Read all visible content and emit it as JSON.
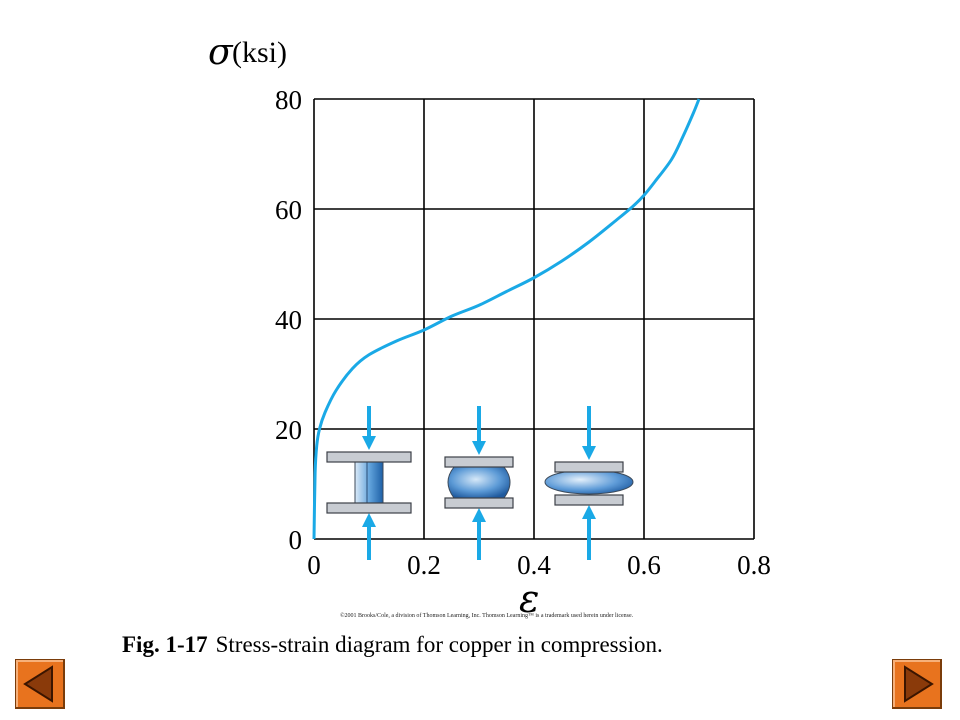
{
  "chart_data": {
    "type": "line",
    "title": "",
    "ylabel_symbol": "σ",
    "ylabel_unit": "(ksi)",
    "xlabel": "ε",
    "xlim": [
      0,
      0.8
    ],
    "ylim": [
      0,
      80
    ],
    "x_ticks": [
      "0",
      "0.2",
      "0.4",
      "0.6",
      "0.8"
    ],
    "y_ticks": [
      "0",
      "20",
      "40",
      "60",
      "80"
    ],
    "grid": true,
    "series": [
      {
        "color": "#1aa9e6",
        "x": [
          0.0,
          0.002,
          0.005,
          0.01,
          0.02,
          0.04,
          0.07,
          0.1,
          0.15,
          0.2,
          0.25,
          0.3,
          0.35,
          0.4,
          0.45,
          0.5,
          0.55,
          0.58,
          0.6,
          0.62,
          0.65,
          0.67,
          0.69,
          0.7
        ],
        "y": [
          0.0,
          12.0,
          17.0,
          20.0,
          23.0,
          27.0,
          31.0,
          33.5,
          36.0,
          38.0,
          40.5,
          42.5,
          45.0,
          47.5,
          50.5,
          54.0,
          58.0,
          60.5,
          62.5,
          65.0,
          69.0,
          73.0,
          77.5,
          80.0
        ]
      }
    ]
  },
  "specimen_icons": [
    {
      "name": "specimen-undeformed",
      "x": 0.1
    },
    {
      "name": "specimen-barrel",
      "x": 0.3
    },
    {
      "name": "specimen-flattened",
      "x": 0.5
    }
  ],
  "icon_colors": {
    "arrow": "#1aa9e6",
    "platen": "#c8ccd2",
    "specimen": "#4a8fd0"
  },
  "copyright": "©2001 Brooks/Cole, a division of Thomson Learning, Inc.  Thomson Learning™ is a trademark used herein under license.",
  "caption": {
    "figure_number": "Fig. 1-17",
    "text": "Stress-strain diagram for copper in compression."
  },
  "nav": {
    "prev_icon": "left-triangle-icon",
    "next_icon": "right-triangle-icon",
    "button_color": "#e8731e"
  }
}
